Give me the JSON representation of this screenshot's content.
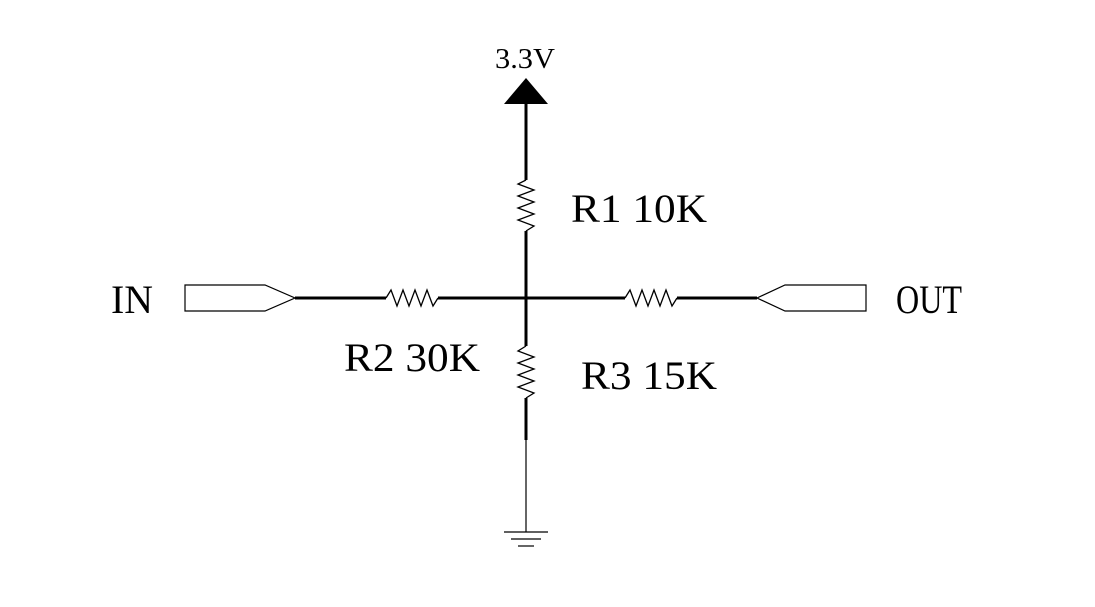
{
  "supply": {
    "label": "3.3V"
  },
  "ports": {
    "input": {
      "label": "IN"
    },
    "output": {
      "label": "OUT"
    }
  },
  "resistors": {
    "r1": {
      "label": "R1 10K"
    },
    "r2": {
      "label": "R2 30K"
    },
    "r3": {
      "label": "R3 15K"
    }
  },
  "ground": {
    "symbol": "ground-icon"
  }
}
